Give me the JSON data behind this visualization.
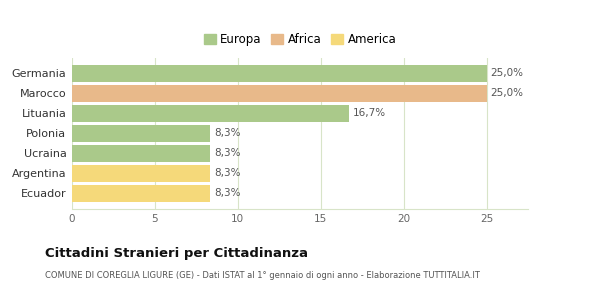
{
  "categories": [
    "Ecuador",
    "Argentina",
    "Ucraina",
    "Polonia",
    "Lituania",
    "Marocco",
    "Germania"
  ],
  "values": [
    8.3,
    8.3,
    8.3,
    8.3,
    16.7,
    25.0,
    25.0
  ],
  "colors": [
    "#f5d97a",
    "#f5d97a",
    "#aac98a",
    "#aac98a",
    "#aac98a",
    "#e8b98a",
    "#aac98a"
  ],
  "labels": [
    "8,3%",
    "8,3%",
    "8,3%",
    "8,3%",
    "16,7%",
    "25,0%",
    "25,0%"
  ],
  "legend": [
    {
      "label": "Europa",
      "color": "#aac98a"
    },
    {
      "label": "Africa",
      "color": "#e8b98a"
    },
    {
      "label": "America",
      "color": "#f5d97a"
    }
  ],
  "xlim": [
    0,
    27.5
  ],
  "xticks": [
    0,
    5,
    10,
    15,
    20,
    25
  ],
  "title": "Cittadini Stranieri per Cittadinanza",
  "subtitle": "COMUNE DI COREGLIA LIGURE (GE) - Dati ISTAT al 1° gennaio di ogni anno - Elaborazione TUTTITALIA.IT",
  "bg_color": "#ffffff",
  "grid_color": "#d8e4c8"
}
